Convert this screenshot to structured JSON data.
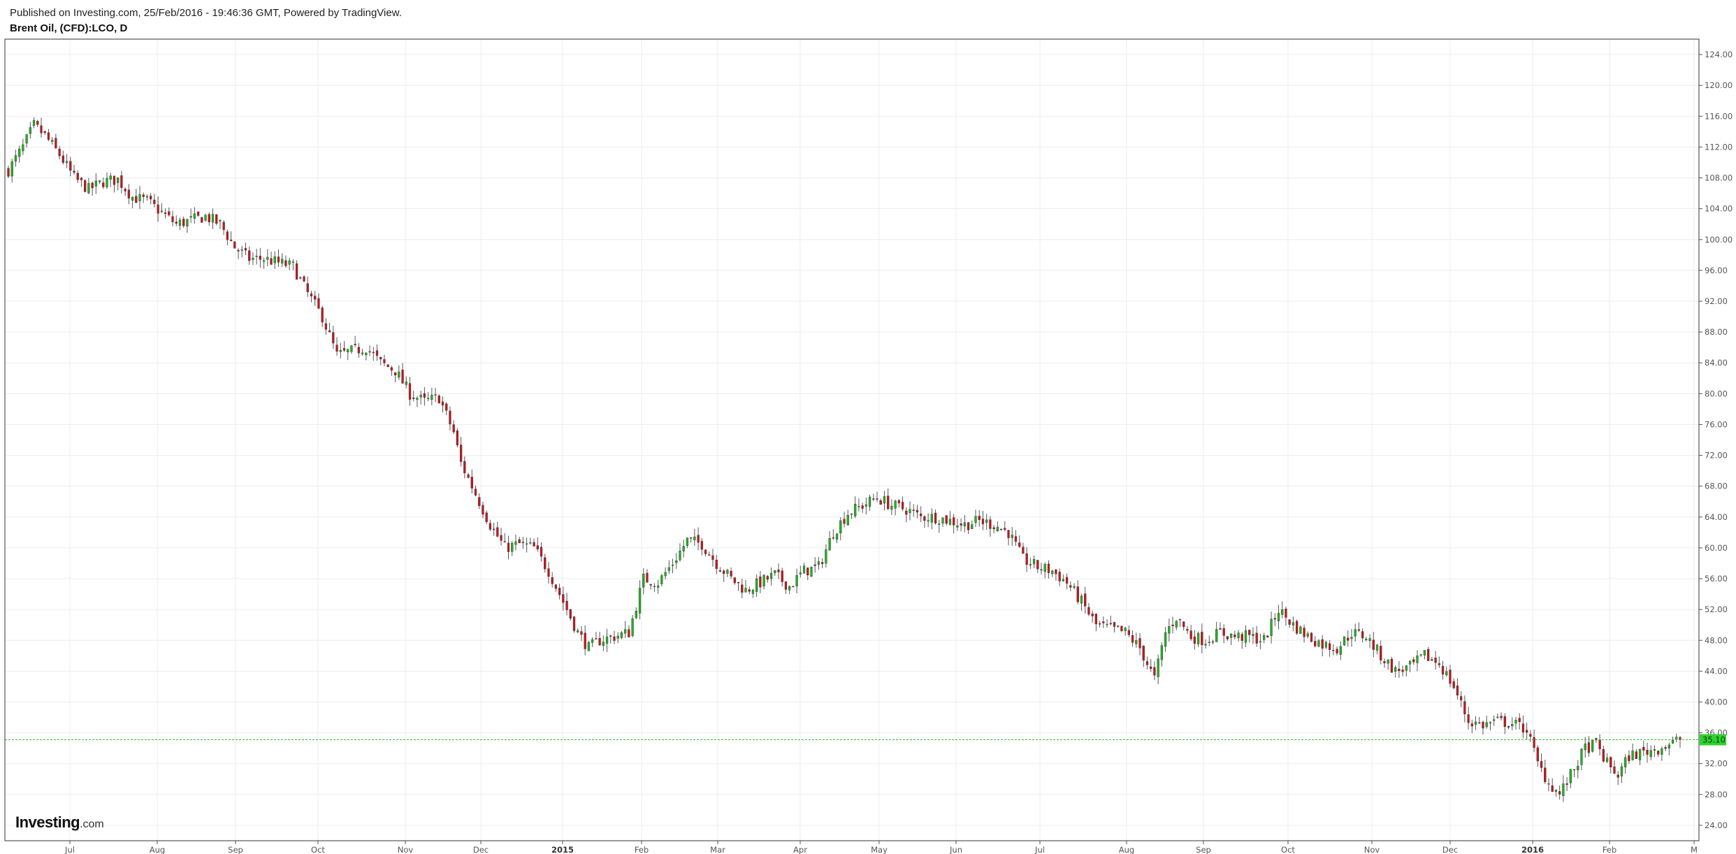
{
  "header": {
    "published": "Published on Investing.com, 25/Feb/2016 - 19:46:36 GMT, Powered by TradingView.",
    "symbol": "Brent Oil, (CFD):LCO, D"
  },
  "logo": {
    "name": "Investing",
    "suffix": ".com"
  },
  "colors": {
    "up": "#22b022",
    "down": "#c4161c",
    "wick": "#555555",
    "grid": "#ececec",
    "price_line": "#2fbf2f"
  },
  "chart_data": {
    "type": "candlestick",
    "ylim": [
      22,
      126
    ],
    "y_ticks": [
      "24.00",
      "28.00",
      "32.00",
      "36.00",
      "40.00",
      "44.00",
      "48.00",
      "52.00",
      "56.00",
      "60.00",
      "64.00",
      "68.00",
      "72.00",
      "76.00",
      "80.00",
      "84.00",
      "88.00",
      "92.00",
      "96.00",
      "100.00",
      "104.00",
      "108.00",
      "112.00",
      "116.00",
      "120.00",
      "124.00"
    ],
    "x_ticks": [
      {
        "label": "Jul",
        "year": false
      },
      {
        "label": "Aug",
        "year": false
      },
      {
        "label": "Sep",
        "year": false
      },
      {
        "label": "Oct",
        "year": false
      },
      {
        "label": "Nov",
        "year": false
      },
      {
        "label": "Dec",
        "year": false
      },
      {
        "label": "2015",
        "year": true
      },
      {
        "label": "Feb",
        "year": false
      },
      {
        "label": "Mar",
        "year": false
      },
      {
        "label": "Apr",
        "year": false
      },
      {
        "label": "May",
        "year": false
      },
      {
        "label": "Jun",
        "year": false
      },
      {
        "label": "Jul",
        "year": false
      },
      {
        "label": "Aug",
        "year": false
      },
      {
        "label": "Sep",
        "year": false
      },
      {
        "label": "Oct",
        "year": false
      },
      {
        "label": "Nov",
        "year": false
      },
      {
        "label": "Dec",
        "year": false
      },
      {
        "label": "2016",
        "year": true
      },
      {
        "label": "Feb",
        "year": false
      },
      {
        "label": "M",
        "year": false
      }
    ],
    "last_price": "35.10",
    "last_value": 35.1,
    "close_path": [
      [
        0,
        109
      ],
      [
        4,
        112
      ],
      [
        7,
        114.8
      ],
      [
        10,
        113.5
      ],
      [
        14,
        111
      ],
      [
        18,
        108
      ],
      [
        22,
        106.5
      ],
      [
        26,
        107.5
      ],
      [
        30,
        107.8
      ],
      [
        34,
        105.5
      ],
      [
        38,
        105
      ],
      [
        42,
        103.5
      ],
      [
        46,
        102
      ],
      [
        50,
        102.5
      ],
      [
        54,
        103
      ],
      [
        58,
        102
      ],
      [
        62,
        99
      ],
      [
        66,
        97.5
      ],
      [
        70,
        97.5
      ],
      [
        74,
        97
      ],
      [
        78,
        96.5
      ],
      [
        82,
        93
      ],
      [
        86,
        90
      ],
      [
        90,
        85
      ],
      [
        94,
        85.5
      ],
      [
        98,
        86
      ],
      [
        102,
        84
      ],
      [
        106,
        83
      ],
      [
        110,
        80
      ],
      [
        114,
        79
      ],
      [
        118,
        79.5
      ],
      [
        122,
        75
      ],
      [
        124,
        71
      ],
      [
        128,
        67
      ],
      [
        132,
        63
      ],
      [
        136,
        60
      ],
      [
        140,
        60.5
      ],
      [
        144,
        60
      ],
      [
        148,
        57
      ],
      [
        152,
        53
      ],
      [
        156,
        49
      ],
      [
        159,
        47
      ],
      [
        162,
        48
      ],
      [
        166,
        48.5
      ],
      [
        170,
        49
      ],
      [
        174,
        56
      ],
      [
        178,
        55.5
      ],
      [
        182,
        58
      ],
      [
        186,
        61
      ],
      [
        190,
        60.5
      ],
      [
        194,
        58
      ],
      [
        198,
        56
      ],
      [
        202,
        54.5
      ],
      [
        206,
        55.5
      ],
      [
        210,
        56.5
      ],
      [
        214,
        55
      ],
      [
        218,
        57
      ],
      [
        222,
        57.5
      ],
      [
        226,
        62
      ],
      [
        230,
        64.5
      ],
      [
        234,
        65.5
      ],
      [
        238,
        66.5
      ],
      [
        242,
        65.5
      ],
      [
        246,
        65
      ],
      [
        250,
        64
      ],
      [
        254,
        64
      ],
      [
        258,
        63.5
      ],
      [
        262,
        63
      ],
      [
        266,
        63.5
      ],
      [
        270,
        63
      ],
      [
        274,
        62
      ],
      [
        278,
        58.5
      ],
      [
        282,
        57.5
      ],
      [
        286,
        57
      ],
      [
        290,
        55.5
      ],
      [
        294,
        53
      ],
      [
        298,
        50
      ],
      [
        302,
        49.5
      ],
      [
        306,
        49
      ],
      [
        310,
        47
      ],
      [
        314,
        43
      ],
      [
        317,
        49
      ],
      [
        320,
        51
      ],
      [
        324,
        48.5
      ],
      [
        328,
        48
      ],
      [
        332,
        49
      ],
      [
        336,
        48.5
      ],
      [
        340,
        48.5
      ],
      [
        344,
        48
      ],
      [
        348,
        52
      ],
      [
        352,
        50
      ],
      [
        356,
        48.5
      ],
      [
        360,
        47.5
      ],
      [
        364,
        47
      ],
      [
        368,
        49
      ],
      [
        372,
        48.5
      ],
      [
        376,
        46
      ],
      [
        380,
        44
      ],
      [
        384,
        44.5
      ],
      [
        388,
        46
      ],
      [
        392,
        45
      ],
      [
        396,
        42
      ],
      [
        400,
        37.5
      ],
      [
        404,
        37
      ],
      [
        408,
        37.5
      ],
      [
        412,
        37.2
      ],
      [
        416,
        36.5
      ],
      [
        419,
        32
      ],
      [
        422,
        29.5
      ],
      [
        425,
        28
      ],
      [
        428,
        30.5
      ],
      [
        432,
        34
      ],
      [
        435,
        34.5
      ],
      [
        438,
        32
      ],
      [
        441,
        30.5
      ],
      [
        444,
        33
      ],
      [
        448,
        33.5
      ],
      [
        452,
        34
      ],
      [
        455,
        34.5
      ],
      [
        458,
        35.1
      ]
    ]
  }
}
